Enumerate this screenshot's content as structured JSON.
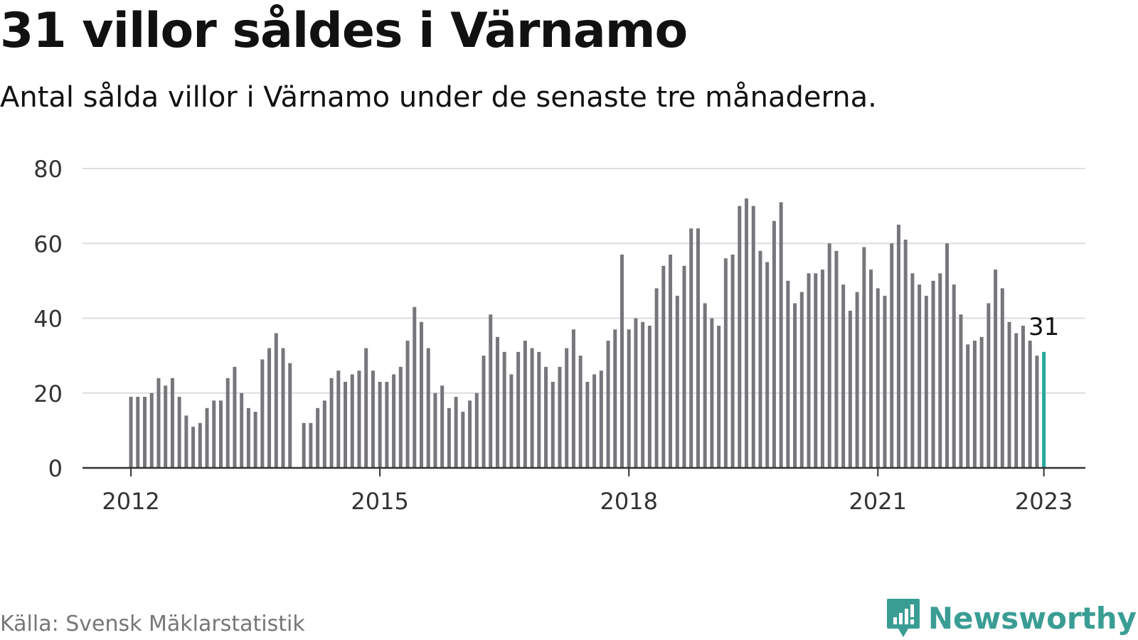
{
  "header": {
    "title": "31 villor såldes i Värnamo",
    "subtitle": "Antal sålda villor i Värnamo under de senaste tre månaderna."
  },
  "footer": {
    "source": "Källa: Svensk Mäklarstatistik",
    "brand": "Newsworthy",
    "brand_icon": "newsworthy-logo-icon"
  },
  "colors": {
    "bar": "#77767b",
    "highlight": "#25a89c",
    "grid": "#dddddd",
    "axis": "#333333",
    "brand": "#3a9d94"
  },
  "chart_data": {
    "type": "bar",
    "title": "31 villor såldes i Värnamo",
    "subtitle": "Antal sålda villor i Värnamo under de senaste tre månaderna.",
    "xlabel": "",
    "ylabel": "",
    "ylim": [
      0,
      80
    ],
    "yticks": [
      0,
      20,
      40,
      60,
      80
    ],
    "xticks": [
      {
        "label": "2012",
        "date": "2012-01"
      },
      {
        "label": "2015",
        "date": "2015-01"
      },
      {
        "label": "2018",
        "date": "2018-01"
      },
      {
        "label": "2021",
        "date": "2021-01"
      },
      {
        "label": "2023",
        "date": "2023-01"
      }
    ],
    "x_range": [
      "2011-06",
      "2023-07"
    ],
    "grid": true,
    "highlight": {
      "date": "2023-01",
      "value": 31,
      "label": "31"
    },
    "series": [
      {
        "dates": [
          "2012-01",
          "2012-02",
          "2012-03",
          "2012-04",
          "2012-05",
          "2012-06",
          "2012-07",
          "2012-08",
          "2012-09",
          "2012-10",
          "2012-11",
          "2012-12",
          "2013-01",
          "2013-02",
          "2013-03",
          "2013-04",
          "2013-05",
          "2013-06",
          "2013-07",
          "2013-08",
          "2013-09",
          "2013-10",
          "2013-11",
          "2013-12",
          "2014-01",
          "2014-02",
          "2014-03",
          "2014-04",
          "2014-05",
          "2014-06",
          "2014-07",
          "2014-08",
          "2014-09",
          "2014-10",
          "2014-11",
          "2014-12",
          "2015-01",
          "2015-02",
          "2015-03",
          "2015-04",
          "2015-05",
          "2015-06",
          "2015-07",
          "2015-08",
          "2015-09",
          "2015-10",
          "2015-11",
          "2015-12",
          "2016-01",
          "2016-02",
          "2016-03",
          "2016-04",
          "2016-05",
          "2016-06",
          "2016-07",
          "2016-08",
          "2016-09",
          "2016-10",
          "2016-11",
          "2016-12",
          "2017-01",
          "2017-02",
          "2017-03",
          "2017-04",
          "2017-05",
          "2017-06",
          "2017-07",
          "2017-08",
          "2017-09",
          "2017-10",
          "2017-11",
          "2017-12",
          "2018-01",
          "2018-02",
          "2018-03",
          "2018-04",
          "2018-05",
          "2018-06",
          "2018-07",
          "2018-08",
          "2018-09",
          "2018-10",
          "2018-11",
          "2018-12",
          "2019-01",
          "2019-02",
          "2019-03",
          "2019-04",
          "2019-05",
          "2019-06",
          "2019-07",
          "2019-08",
          "2019-09",
          "2019-10",
          "2019-11",
          "2019-12",
          "2020-01",
          "2020-02",
          "2020-03",
          "2020-04",
          "2020-05",
          "2020-06",
          "2020-07",
          "2020-08",
          "2020-09",
          "2020-10",
          "2020-11",
          "2020-12",
          "2021-01",
          "2021-02",
          "2021-03",
          "2021-04",
          "2021-05",
          "2021-06",
          "2021-07",
          "2021-08",
          "2021-09",
          "2021-10",
          "2021-11",
          "2021-12",
          "2022-01",
          "2022-02",
          "2022-03",
          "2022-04",
          "2022-05",
          "2022-06",
          "2022-07",
          "2022-08",
          "2022-09",
          "2022-10",
          "2022-11",
          "2022-12",
          "2023-01"
        ],
        "values": [
          19,
          19,
          19,
          20,
          24,
          22,
          24,
          19,
          14,
          11,
          12,
          16,
          18,
          18,
          24,
          27,
          20,
          16,
          15,
          29,
          32,
          36,
          32,
          28,
          null,
          12,
          12,
          16,
          18,
          24,
          26,
          23,
          25,
          26,
          32,
          26,
          23,
          23,
          25,
          27,
          34,
          43,
          39,
          32,
          20,
          22,
          16,
          19,
          15,
          18,
          20,
          30,
          41,
          35,
          31,
          25,
          31,
          34,
          32,
          31,
          27,
          23,
          27,
          32,
          37,
          30,
          23,
          25,
          26,
          34,
          37,
          57,
          37,
          40,
          39,
          38,
          48,
          54,
          57,
          46,
          54,
          64,
          64,
          44,
          40,
          38,
          56,
          57,
          70,
          72,
          70,
          58,
          55,
          66,
          71,
          50,
          44,
          47,
          52,
          52,
          53,
          60,
          58,
          49,
          42,
          47,
          59,
          53,
          48,
          46,
          60,
          65,
          61,
          52,
          49,
          46,
          50,
          52,
          60,
          49,
          41,
          33,
          34,
          35,
          44,
          53,
          48,
          39,
          36,
          38,
          34,
          30,
          31
        ]
      }
    ]
  }
}
